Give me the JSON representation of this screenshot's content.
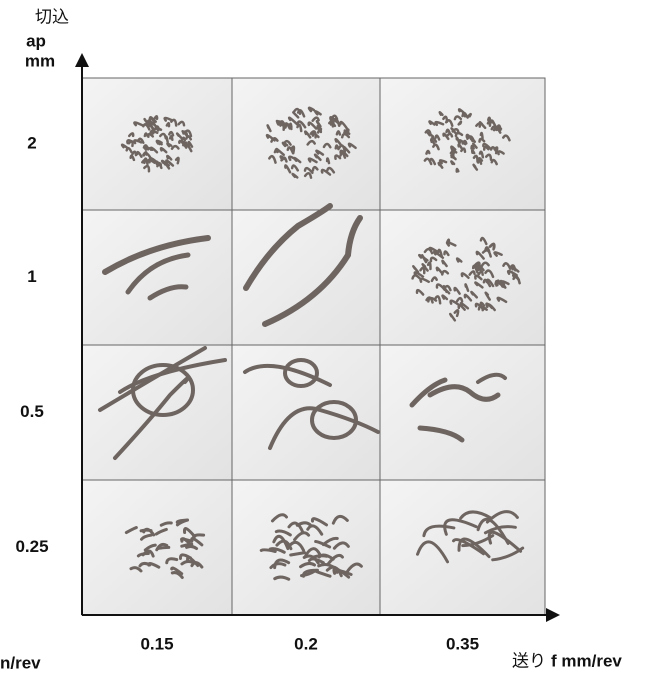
{
  "y_axis": {
    "label_lines": [
      "切込",
      "ap",
      "mm"
    ]
  },
  "rows": [
    "2",
    "1",
    "0.5",
    "0.25"
  ],
  "columns": [
    "0.15",
    "0.2",
    "0.35"
  ],
  "x_axis": {
    "prefix": "送り",
    "label": "f mm/rev"
  },
  "cut_label": "n/rev"
}
